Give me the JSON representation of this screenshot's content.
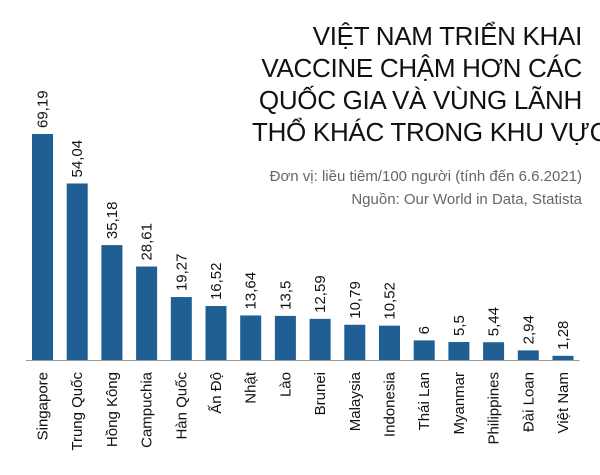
{
  "header": {
    "title_lines": [
      "VIỆT NAM TRIỂN KHAI",
      "VACCINE CHẬM HƠN CÁC",
      "QUỐC GIA VÀ VÙNG LÃNH",
      "THỔ KHÁC TRONG KHU VỰC"
    ],
    "unit": "Đơn vị: liều tiêm/100 người (tính đến 6.6.2021)",
    "source": "Nguồn: Our World in Data, Statista"
  },
  "chart_data": {
    "type": "bar",
    "title": "VIỆT NAM TRIỂN KHAI VACCINE CHẬM HƠN CÁC QUỐC GIA VÀ VÙNG LÃNH THỔ KHÁC TRONG KHU VỰC",
    "categories": [
      "Singapore",
      "Trung Quốc",
      "Hồng Kông",
      "Campuchia",
      "Hàn Quốc",
      "Ấn Độ",
      "Nhật",
      "Lào",
      "Brunei",
      "Malaysia",
      "Indonesia",
      "Thái Lan",
      "Myanmar",
      "Philippines",
      "Đài Loan",
      "Việt Nam"
    ],
    "values": [
      69.19,
      54.04,
      35.18,
      28.61,
      19.27,
      16.52,
      13.64,
      13.5,
      12.59,
      10.79,
      10.52,
      6,
      5.5,
      5.44,
      2.94,
      1.28
    ],
    "value_labels": [
      "69,19",
      "54,04",
      "35,18",
      "28,61",
      "19,27",
      "16,52",
      "13,64",
      "13,5",
      "12,59",
      "10,79",
      "10,52",
      "6",
      "5,5",
      "5,44",
      "2,94",
      "1,28"
    ],
    "ylim": [
      0,
      70
    ],
    "grid": false,
    "bar_color": "#1f5f94",
    "baseline_color": "#9a9a9a"
  }
}
